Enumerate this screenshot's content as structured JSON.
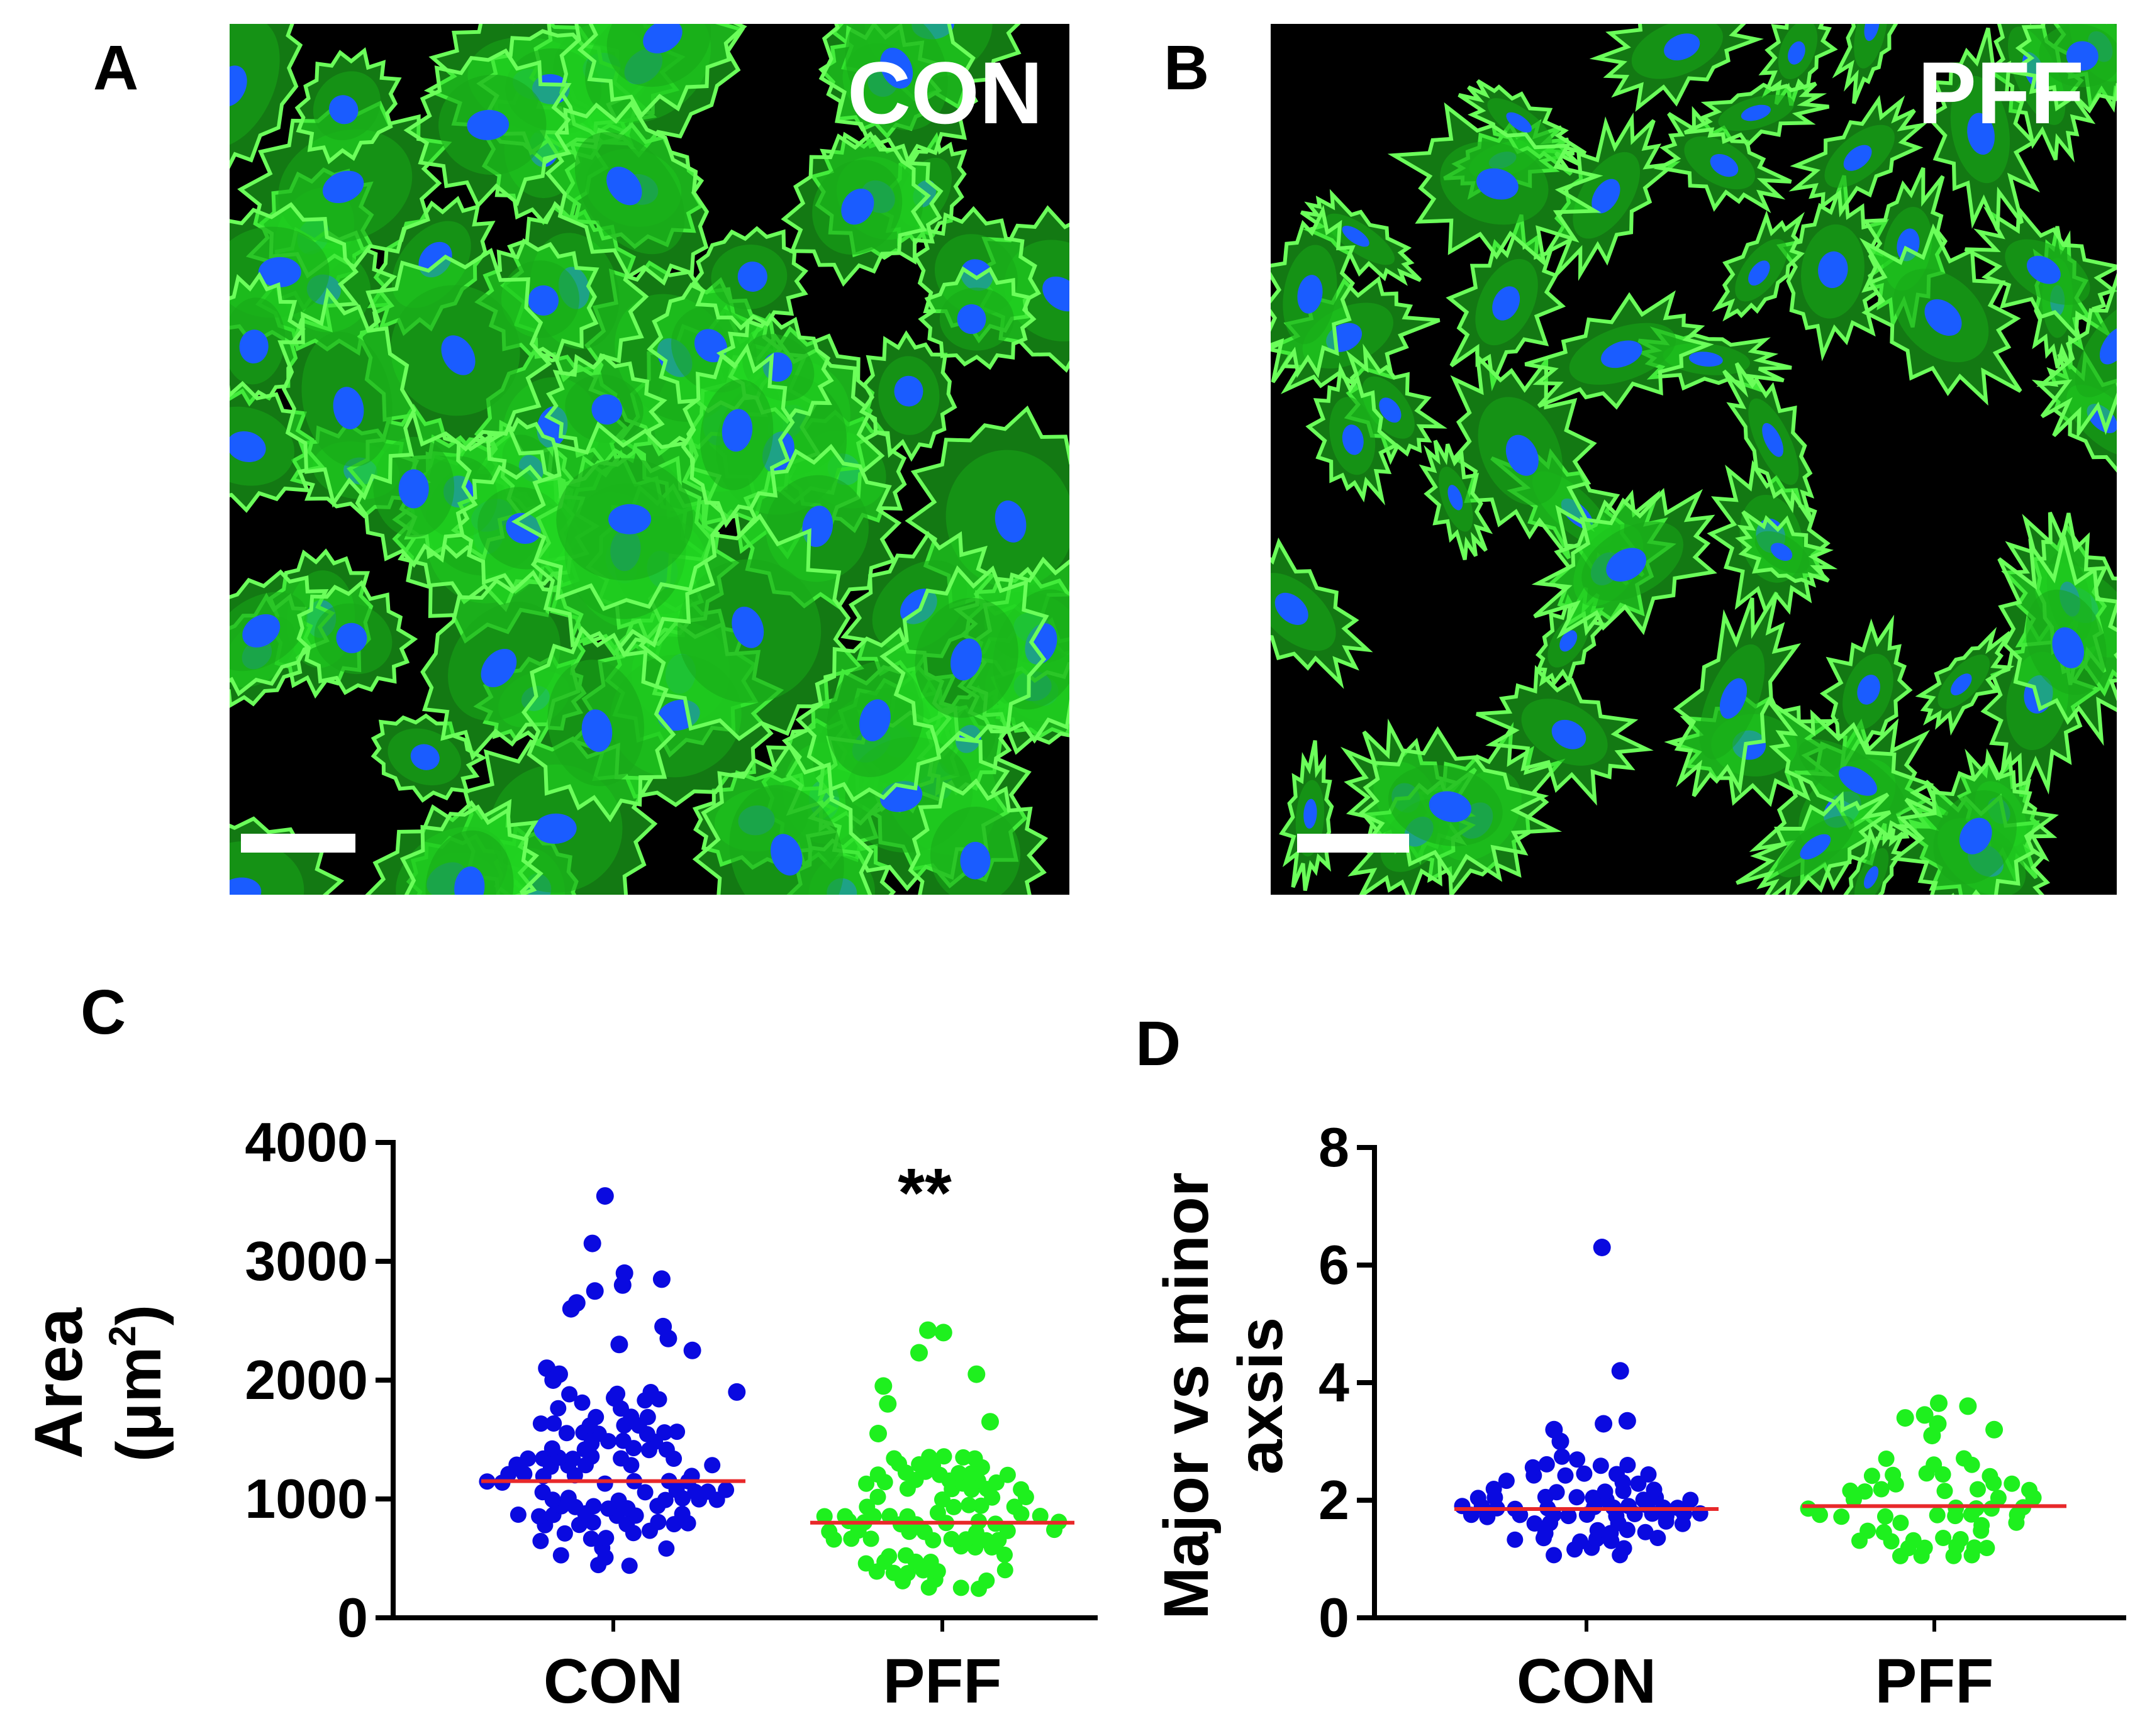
{
  "panels": {
    "a": {
      "letter": "A",
      "label": "CON"
    },
    "b": {
      "letter": "B",
      "label": "PFF"
    },
    "c": {
      "letter": "C"
    },
    "d": {
      "letter": "D"
    }
  },
  "colors": {
    "actin": "#22dd22",
    "nucleus": "#1a5cff",
    "con_points": "#0a0ae0",
    "pff_points": "#1ef01e",
    "mean_line": "#e8282a",
    "scalebar": "#ffffff"
  },
  "chart_data": [
    {
      "id": "C",
      "type": "scatter",
      "subtype": "dot-plot",
      "ylabel_line1": "Area",
      "ylabel_line2_base": "(μm",
      "ylabel_line2_sup": "2",
      "ylabel_line2_end": ")",
      "ylim": [
        0,
        4000
      ],
      "yticks": [
        "0",
        "1000",
        "2000",
        "3000",
        "4000"
      ],
      "categories": [
        "CON",
        "PFF"
      ],
      "significance": "**",
      "grid": false,
      "series": [
        {
          "category": "CON",
          "mean": 1150,
          "min": 450,
          "max": 3550,
          "outliers": [
            3550,
            3150,
            2900,
            2850,
            2800,
            2750,
            2650,
            2600,
            2450,
            2350,
            2300,
            2250,
            2100,
            2050,
            2000,
            1900,
            1850
          ]
        },
        {
          "category": "PFF",
          "mean": 800,
          "min": 250,
          "max": 2420,
          "outliers": [
            2420,
            2400,
            2230,
            2050,
            1950,
            1800,
            1650,
            1550
          ]
        }
      ]
    },
    {
      "id": "D",
      "type": "scatter",
      "subtype": "dot-plot",
      "ylabel_line1": "Major vs minor",
      "ylabel_line2": "axsis",
      "ylim": [
        0,
        8
      ],
      "yticks": [
        "0",
        "2",
        "4",
        "6",
        "8"
      ],
      "categories": [
        "CON",
        "PFF"
      ],
      "grid": false,
      "series": [
        {
          "category": "CON",
          "mean": 1.85,
          "min": 1.05,
          "max": 6.3,
          "outliers": [
            6.3,
            4.2,
            3.35,
            3.3,
            3.2,
            3.0
          ]
        },
        {
          "category": "PFF",
          "mean": 1.9,
          "min": 1.05,
          "max": 3.65,
          "outliers": [
            3.65,
            3.6,
            3.45,
            3.4,
            3.3,
            3.2,
            3.1
          ]
        }
      ]
    }
  ]
}
